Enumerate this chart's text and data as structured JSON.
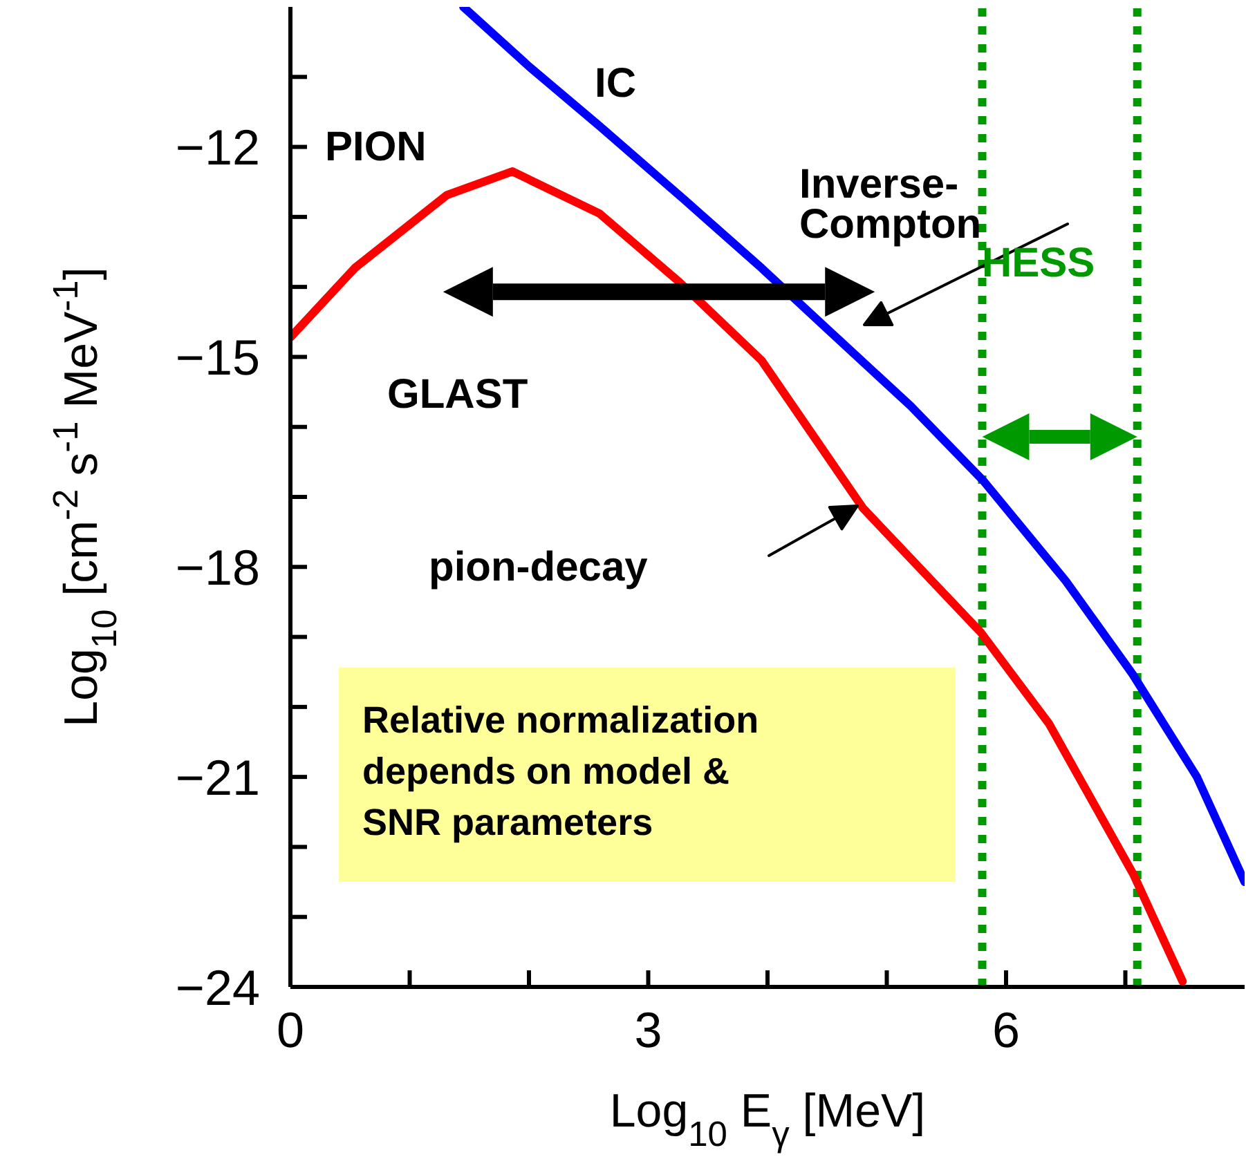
{
  "chart_data": {
    "type": "line",
    "xlabel": "Log$_{10}$ E$_{γ}$ [MeV]",
    "ylabel": "Log$_{10}$ [cm$^{-2}$ s$^{-1}$ MeV$^{-1}$]",
    "xlim": [
      0,
      8
    ],
    "ylim": [
      -24,
      -10
    ],
    "xticks": [
      0,
      {
        "value": 1,
        "label": null
      },
      {
        "value": 2,
        "label": null
      },
      3,
      {
        "value": 4,
        "label": null
      },
      {
        "value": 5,
        "label": null
      },
      6,
      {
        "value": 7,
        "label": null
      }
    ],
    "yticks": [
      {
        "value": -24,
        "label": "−24"
      },
      {
        "value": -23,
        "label": null
      },
      {
        "value": -22,
        "label": null
      },
      {
        "value": -21,
        "label": "−21"
      },
      {
        "value": -20,
        "label": null
      },
      {
        "value": -19,
        "label": null
      },
      {
        "value": -18,
        "label": "−18"
      },
      {
        "value": -17,
        "label": null
      },
      {
        "value": -16,
        "label": null
      },
      {
        "value": -15,
        "label": "−15"
      },
      {
        "value": -14,
        "label": null
      },
      {
        "value": -13,
        "label": null
      },
      {
        "value": -12,
        "label": "−12"
      },
      {
        "value": -11,
        "label": null
      }
    ],
    "series": [
      {
        "name": "PION",
        "color": "#ff0000",
        "x": [
          0,
          0.54,
          1.31,
          1.86,
          2.59,
          3.26,
          3.95,
          4.8,
          5.79,
          6.36,
          7.07,
          7.48
        ],
        "values": [
          -14.72,
          -13.73,
          -12.69,
          -12.35,
          -12.95,
          -13.93,
          -15.05,
          -17.16,
          -18.94,
          -20.24,
          -22.4,
          -23.92
        ]
      },
      {
        "name": "IC",
        "color": "#0000ff",
        "x": [
          1.45,
          2.0,
          2.59,
          3.3,
          3.95,
          4.5,
          5.2,
          5.81,
          6.5,
          7.06,
          7.6,
          8.0
        ],
        "values": [
          -10.0,
          -10.85,
          -11.7,
          -12.75,
          -13.73,
          -14.6,
          -15.7,
          -16.77,
          -18.2,
          -19.53,
          -21.0,
          -22.5
        ]
      }
    ],
    "ref_lines": [
      {
        "axis": "x",
        "value": 5.8,
        "color": "#009900",
        "line_style": "dotted"
      },
      {
        "axis": "x",
        "value": 7.1,
        "color": "#009900",
        "line_style": "dotted"
      }
    ],
    "annotations": [
      "Inverse-Compton",
      "pion-decay",
      "GLAST",
      "HESS",
      "Relative normalization depends on model & SNR parameters"
    ]
  }
}
